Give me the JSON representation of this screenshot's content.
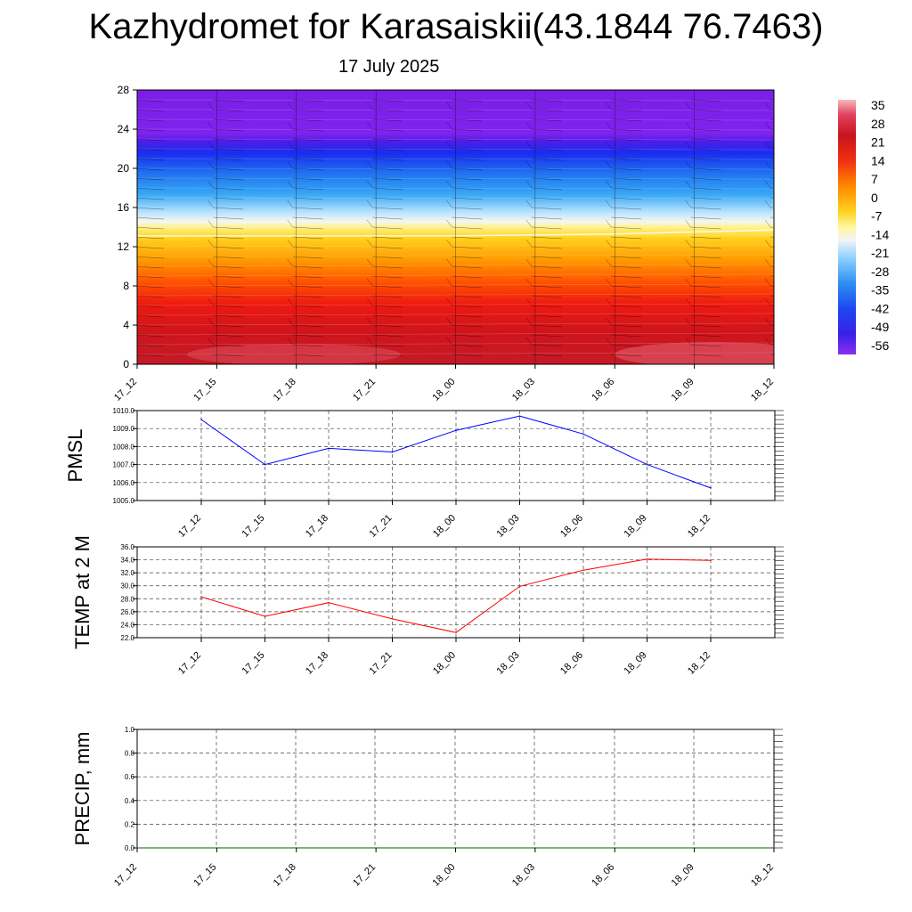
{
  "title": "Kazhydromet for Karasaiskii(43.1844 76.7463)",
  "subtitle": "17 July 2025",
  "time_labels": [
    "17_12",
    "17_15",
    "17_18",
    "17_21",
    "18_00",
    "18_03",
    "18_06",
    "18_09",
    "18_12"
  ],
  "chart_data": [
    {
      "type": "heatmap",
      "name": "temperature-cross-section",
      "x": [
        "17_12",
        "17_15",
        "17_18",
        "17_21",
        "18_00",
        "18_03",
        "18_06",
        "18_09",
        "18_12"
      ],
      "y_ticks": [
        0,
        4,
        8,
        12,
        16,
        20,
        24,
        28
      ],
      "ylim": [
        0,
        28
      ],
      "freezing_level": [
        13.1,
        13.1,
        13.1,
        13.1,
        13.1,
        13.2,
        13.3,
        13.5,
        13.7
      ],
      "colorbar": {
        "labels": [
          "35",
          "28",
          "21",
          "14",
          "7",
          "0",
          "-7",
          "-14",
          "-21",
          "-28",
          "-35",
          "-42",
          "-49",
          "-56"
        ]
      }
    },
    {
      "type": "line",
      "name": "pmsl",
      "ylabel": "PMSL",
      "x": [
        "17_12",
        "17_15",
        "17_18",
        "17_21",
        "18_00",
        "18_03",
        "18_06",
        "18_09",
        "18_12"
      ],
      "values": [
        1009.5,
        1007.0,
        1007.9,
        1007.7,
        1008.9,
        1009.7,
        1008.7,
        1007.0,
        1005.7
      ],
      "ylim": [
        1005.0,
        1010.0
      ],
      "y_ticks": [
        "1005.0",
        "1006.0",
        "1007.0",
        "1008.0",
        "1009.0",
        "1010.0"
      ],
      "color": "#0000ff"
    },
    {
      "type": "line",
      "name": "temp-2m",
      "ylabel": "TEMP at 2 M",
      "x": [
        "17_12",
        "17_15",
        "17_18",
        "17_21",
        "18_00",
        "18_03",
        "18_06",
        "18_09",
        "18_12"
      ],
      "values": [
        28.3,
        25.3,
        27.4,
        24.9,
        22.8,
        29.9,
        32.4,
        34.1,
        33.9
      ],
      "ylim": [
        22.0,
        36.0
      ],
      "y_ticks": [
        "22.0",
        "24.0",
        "26.0",
        "28.0",
        "30.0",
        "32.0",
        "34.0",
        "36.0"
      ],
      "color": "#ff0000"
    },
    {
      "type": "line",
      "name": "precip",
      "ylabel": "PRECIP, mm",
      "x": [
        "17_12",
        "17_15",
        "17_18",
        "17_21",
        "18_00",
        "18_03",
        "18_06",
        "18_09",
        "18_12"
      ],
      "values": [
        0,
        0,
        0,
        0,
        0,
        0,
        0,
        0,
        0
      ],
      "ylim": [
        0.0,
        1.0
      ],
      "y_ticks": [
        "0.0",
        "0.2",
        "0.4",
        "0.6",
        "0.8",
        "1.0"
      ],
      "color": "#006400"
    }
  ]
}
